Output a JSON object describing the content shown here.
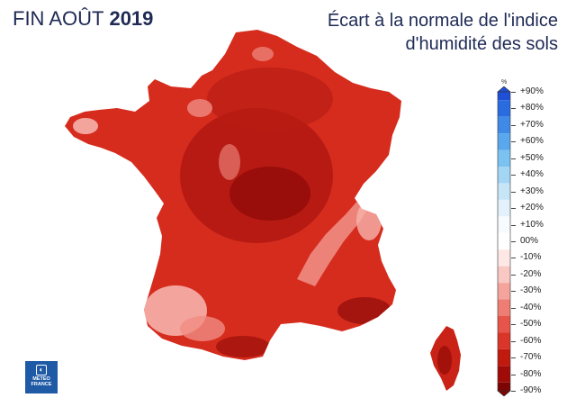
{
  "header": {
    "title_left": "FIN AOÛT",
    "title_year": "2019",
    "title_right_line1": "Écart à la normale de l'indice",
    "title_right_line2": "d'humidité des sols"
  },
  "legend": {
    "unit": "%",
    "labels": [
      "+90%",
      "+80%",
      "+70%",
      "+60%",
      "+50%",
      "+40%",
      "+30%",
      "+20%",
      "+10%",
      "00%",
      "-10%",
      "-20%",
      "-30%",
      "-40%",
      "-50%",
      "-60%",
      "-70%",
      "-80%",
      "-90%"
    ],
    "colors": [
      "#1f4fd6",
      "#2a6be0",
      "#3f8ae6",
      "#59a7ec",
      "#7cc2f1",
      "#a3d6f5",
      "#c6e6f8",
      "#e2f1fb",
      "#f7fbfe",
      "#ffffff",
      "#fde8e6",
      "#f9c8c3",
      "#f4a49c",
      "#ee7d73",
      "#e6544a",
      "#d93528",
      "#c2190f",
      "#a00b07",
      "#7c0503"
    ]
  },
  "logo": {
    "line1": "METEO",
    "line2": "FRANCE"
  },
  "map": {
    "regions": [
      "France",
      "Corse"
    ],
    "colors": {
      "base": "#d62c1e",
      "dry_core": "#b01810",
      "dark_patch": "#8f0b08",
      "light_band": "#f08c82",
      "very_light": "#f6b3ab"
    }
  }
}
